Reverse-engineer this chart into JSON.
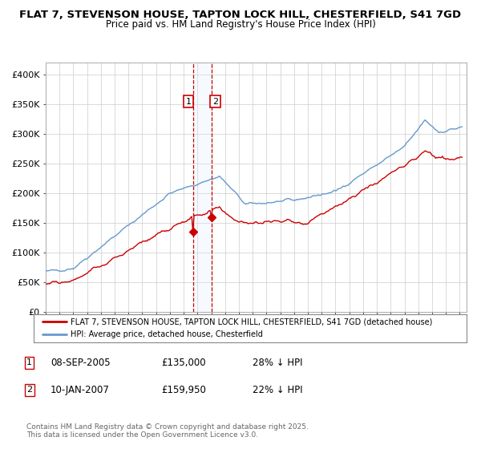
{
  "title_line1": "FLAT 7, STEVENSON HOUSE, TAPTON LOCK HILL, CHESTERFIELD, S41 7GD",
  "title_line2": "Price paid vs. HM Land Registry's House Price Index (HPI)",
  "xlim_start": 1995.0,
  "xlim_end": 2025.5,
  "ylim_min": 0,
  "ylim_max": 420000,
  "yticks": [
    0,
    50000,
    100000,
    150000,
    200000,
    250000,
    300000,
    350000,
    400000
  ],
  "ytick_labels": [
    "£0",
    "£50K",
    "£100K",
    "£150K",
    "£200K",
    "£250K",
    "£300K",
    "£350K",
    "£400K"
  ],
  "sale1_date": 2005.69,
  "sale1_price": 135000,
  "sale2_date": 2007.04,
  "sale2_price": 159950,
  "legend_line1": "FLAT 7, STEVENSON HOUSE, TAPTON LOCK HILL, CHESTERFIELD, S41 7GD (detached house)",
  "legend_line2": "HPI: Average price, detached house, Chesterfield",
  "footnote": "Contains HM Land Registry data © Crown copyright and database right 2025.\nThis data is licensed under the Open Government Licence v3.0.",
  "line_color_red": "#cc0000",
  "line_color_blue": "#6699cc",
  "shade_color": "#ddeeff",
  "vline_color": "#cc0000",
  "bg_color": "#ffffff",
  "grid_color": "#cccccc"
}
